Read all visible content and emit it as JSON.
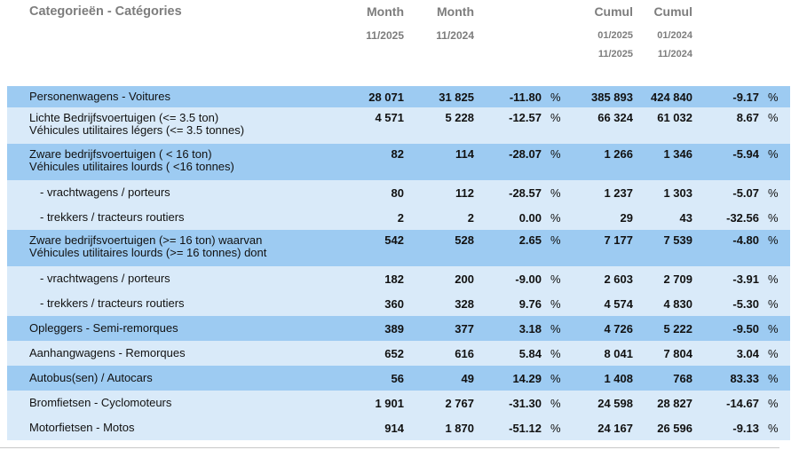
{
  "table": {
    "category_header": "Categorieën - Catégories",
    "columns": {
      "month_current": {
        "title": "Month",
        "period": "11/2025"
      },
      "month_previous": {
        "title": "Month",
        "period": "11/2024"
      },
      "cumul_current": {
        "title": "Cumul",
        "period_from": "01/2025",
        "period_to": "11/2025"
      },
      "cumul_previous": {
        "title": "Cumul",
        "period_from": "01/2024",
        "period_to": "11/2024"
      }
    },
    "percent_sign": "%",
    "rows": [
      {
        "shade": "dark",
        "indent": false,
        "label_lines": [
          "Personenwagens - Voitures"
        ],
        "month_current": "28 071",
        "month_previous": "31 825",
        "pct_month": "-11.80",
        "cumul_current": "385 893",
        "cumul_previous": "424 840",
        "pct_cumul": "-9.17"
      },
      {
        "shade": "light",
        "indent": false,
        "label_lines": [
          "Lichte Bedrijfsvoertuigen (<= 3.5 ton)",
          "Véhicules utilitaires légers (<= 3.5 tonnes)"
        ],
        "month_current": "4 571",
        "month_previous": "5 228",
        "pct_month": "-12.57",
        "cumul_current": "66 324",
        "cumul_previous": "61 032",
        "pct_cumul": "8.67"
      },
      {
        "shade": "dark",
        "indent": false,
        "label_lines": [
          "Zware bedrijfsvoertuigen ( < 16 ton)",
          "Véhicules utilitaires lourds ( <16 tonnes)"
        ],
        "month_current": "82",
        "month_previous": "114",
        "pct_month": "-28.07",
        "cumul_current": "1 266",
        "cumul_previous": "1 346",
        "pct_cumul": "-5.94"
      },
      {
        "shade": "light",
        "indent": true,
        "label_lines": [
          "- vrachtwagens / porteurs"
        ],
        "month_current": "80",
        "month_previous": "112",
        "pct_month": "-28.57",
        "cumul_current": "1 237",
        "cumul_previous": "1 303",
        "pct_cumul": "-5.07"
      },
      {
        "shade": "light",
        "indent": true,
        "label_lines": [
          "- trekkers / tracteurs routiers"
        ],
        "month_current": "2",
        "month_previous": "2",
        "pct_month": "0.00",
        "cumul_current": "29",
        "cumul_previous": "43",
        "pct_cumul": "-32.56"
      },
      {
        "shade": "dark",
        "indent": false,
        "label_lines": [
          "Zware bedrijfsvoertuigen (>= 16 ton) waarvan",
          "Véhicules utilitaires lourds (>= 16 tonnes) dont"
        ],
        "month_current": "542",
        "month_previous": "528",
        "pct_month": "2.65",
        "cumul_current": "7 177",
        "cumul_previous": "7 539",
        "pct_cumul": "-4.80"
      },
      {
        "shade": "light",
        "indent": true,
        "label_lines": [
          "- vrachtwagens / porteurs"
        ],
        "month_current": "182",
        "month_previous": "200",
        "pct_month": "-9.00",
        "cumul_current": "2 603",
        "cumul_previous": "2 709",
        "pct_cumul": "-3.91"
      },
      {
        "shade": "light",
        "indent": true,
        "label_lines": [
          "- trekkers / tracteurs routiers"
        ],
        "month_current": "360",
        "month_previous": "328",
        "pct_month": "9.76",
        "cumul_current": "4 574",
        "cumul_previous": "4 830",
        "pct_cumul": "-5.30"
      },
      {
        "shade": "dark",
        "indent": false,
        "label_lines": [
          "Opleggers - Semi-remorques"
        ],
        "month_current": "389",
        "month_previous": "377",
        "pct_month": "3.18",
        "cumul_current": "4 726",
        "cumul_previous": "5 222",
        "pct_cumul": "-9.50"
      },
      {
        "shade": "light",
        "indent": false,
        "label_lines": [
          "Aanhangwagens - Remorques"
        ],
        "month_current": "652",
        "month_previous": "616",
        "pct_month": "5.84",
        "cumul_current": "8 041",
        "cumul_previous": "7 804",
        "pct_cumul": "3.04"
      },
      {
        "shade": "dark",
        "indent": false,
        "label_lines": [
          "Autobus(sen) / Autocars"
        ],
        "month_current": "56",
        "month_previous": "49",
        "pct_month": "14.29",
        "cumul_current": "1 408",
        "cumul_previous": "768",
        "pct_cumul": "83.33"
      },
      {
        "shade": "light",
        "indent": false,
        "label_lines": [
          "Bromfietsen - Cyclomoteurs"
        ],
        "month_current": "1 901",
        "month_previous": "2 767",
        "pct_month": "-31.30",
        "cumul_current": "24 598",
        "cumul_previous": "28 827",
        "pct_cumul": "-14.67"
      },
      {
        "shade": "light",
        "indent": false,
        "label_lines": [
          "Motorfietsen - Motos"
        ],
        "month_current": "914",
        "month_previous": "1 870",
        "pct_month": "-51.12",
        "cumul_current": "24 167",
        "cumul_previous": "26 596",
        "pct_cumul": "-9.13"
      }
    ]
  },
  "colors": {
    "row_dark": "#9dcbf2",
    "row_light": "#d9eaf9",
    "header_text": "#7d7d7d",
    "row_text": "#111111",
    "bottom_rule": "#c8c8c8"
  }
}
